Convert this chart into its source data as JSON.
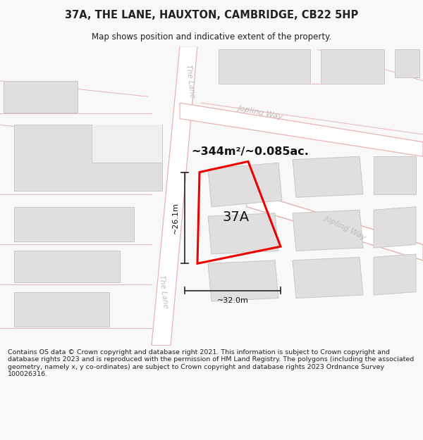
{
  "title": "37A, THE LANE, HAUXTON, CAMBRIDGE, CB22 5HP",
  "subtitle": "Map shows position and indicative extent of the property.",
  "area_label": "~344m²/~0.085ac.",
  "property_label": "37A",
  "dim_horizontal": "~32.0m",
  "dim_vertical": "~26.1m",
  "footer": "Contains OS data © Crown copyright and database right 2021. This information is subject to Crown copyright and database rights 2023 and is reproduced with the permission of HM Land Registry. The polygons (including the associated geometry, namely x, y co-ordinates) are subject to Crown copyright and database rights 2023 Ordnance Survey 100026316.",
  "map_bg": "#f0eeee",
  "road_fill": "#ffffff",
  "road_edge": "#e8b4b4",
  "building_fill": "#e0dede",
  "building_stroke": "#c8c8c8",
  "road_label_color": "#c0bcbc",
  "property_stroke": "#ee0000",
  "dim_color": "#333333",
  "title_color": "#222222",
  "footer_color": "#222222",
  "title_bg": "#f8f8f8",
  "map_area_bg": "#f0eeee",
  "footer_bg": "#ffffff",
  "figsize": [
    6.0,
    6.25
  ],
  "dpi": 100
}
